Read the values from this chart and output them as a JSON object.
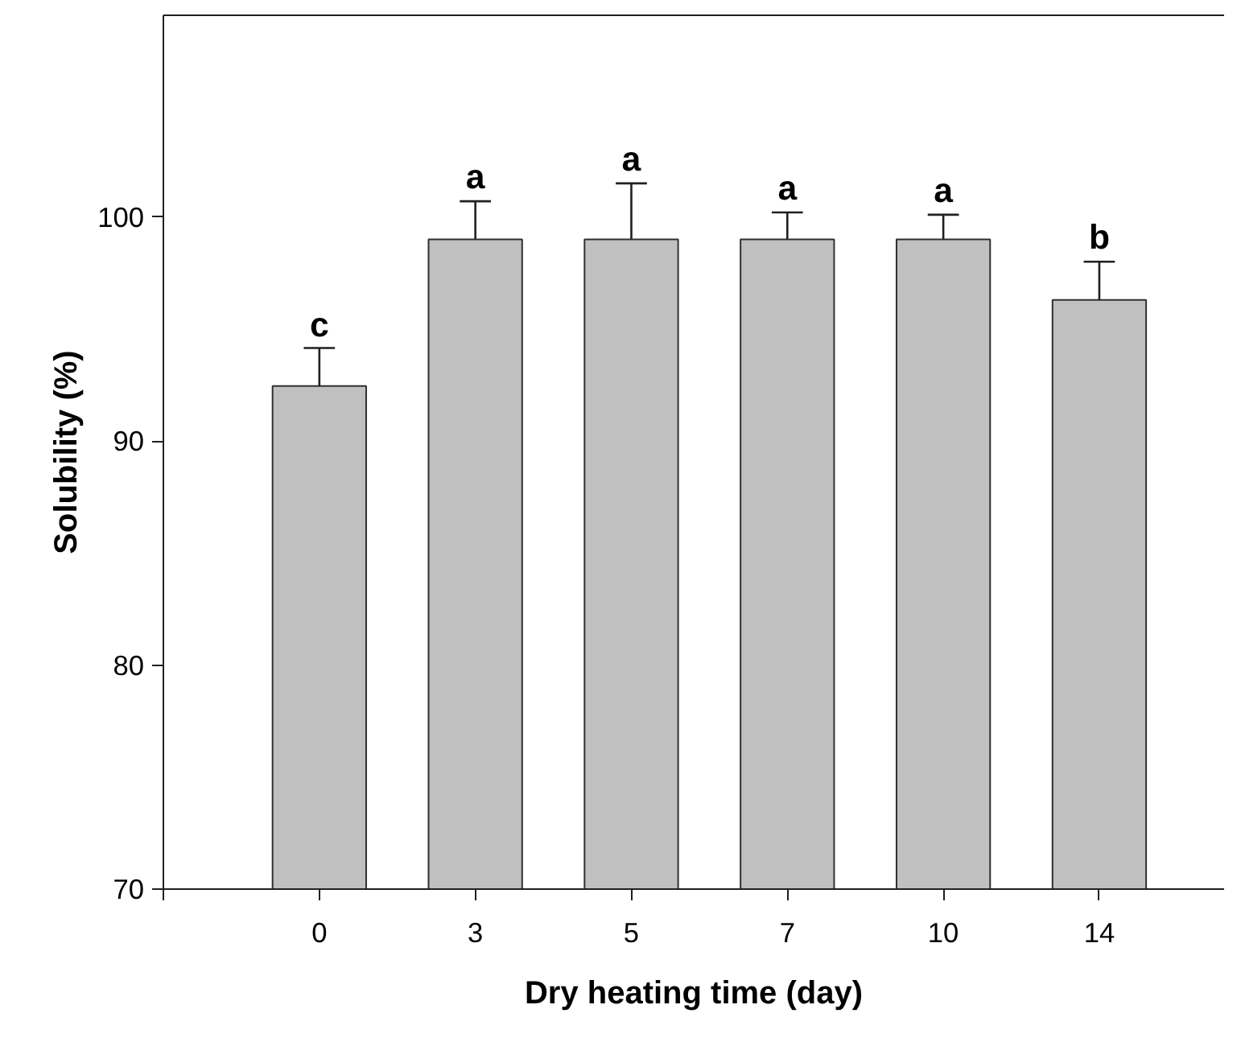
{
  "chart_data": {
    "type": "bar",
    "xlabel": "Dry heating time (day)",
    "ylabel": "Solubility (%)",
    "categories": [
      "0",
      "3",
      "5",
      "7",
      "10",
      "14"
    ],
    "values": [
      92.45,
      99.0,
      99.0,
      99.0,
      99.0,
      96.3
    ],
    "errors": [
      1.7,
      1.7,
      2.5,
      1.2,
      1.1,
      1.7
    ],
    "color": "#c0c0c0",
    "ylim": [
      70,
      109
    ],
    "yticks": [
      70,
      80,
      90,
      100
    ],
    "annotations": [
      {
        "text": "c",
        "x": "0",
        "y": 94.1
      },
      {
        "text": "a",
        "x": "3",
        "y": 100.7
      },
      {
        "text": "a",
        "x": "5",
        "y": 101.5
      },
      {
        "text": "a",
        "x": "7",
        "y": 100.2
      },
      {
        "text": "a",
        "x": "10",
        "y": 100.1
      },
      {
        "text": "b",
        "x": "14",
        "y": 98.0
      }
    ],
    "grid": false
  }
}
